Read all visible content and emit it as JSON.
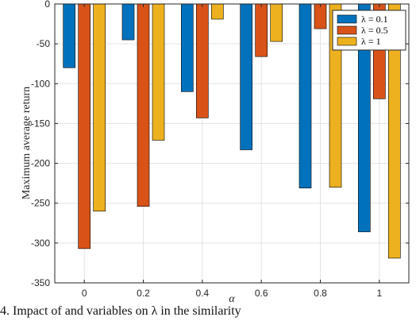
{
  "chart_data": {
    "type": "bar",
    "categories": [
      "0",
      "0.2",
      "0.4",
      "0.6",
      "0.8",
      "1"
    ],
    "series": [
      {
        "name": "λ = 0.1",
        "color": "#0072BD",
        "values": [
          -80,
          -45,
          -110,
          -183,
          -231,
          -286
        ]
      },
      {
        "name": "λ = 0.5",
        "color": "#D95319",
        "values": [
          -307,
          -254,
          -143,
          -66,
          -31,
          -119
        ]
      },
      {
        "name": "λ = 1",
        "color": "#EDB120",
        "values": [
          -260,
          -171,
          -19,
          -47,
          -230,
          -319
        ]
      }
    ],
    "xlabel": "α",
    "ylabel": "Maximum average return",
    "ylim": [
      -350,
      0
    ],
    "yticks": [
      0,
      -50,
      -100,
      -150,
      -200,
      -250,
      -300,
      -350
    ],
    "ytick_labels": [
      "0",
      "-50",
      "-100",
      "-150",
      "-200",
      "-250",
      "-300",
      "-350"
    ],
    "grid": true,
    "legend_position": "top-right"
  },
  "caption_text": "4.  Impact of  and  variables on  λ  in the similarity"
}
